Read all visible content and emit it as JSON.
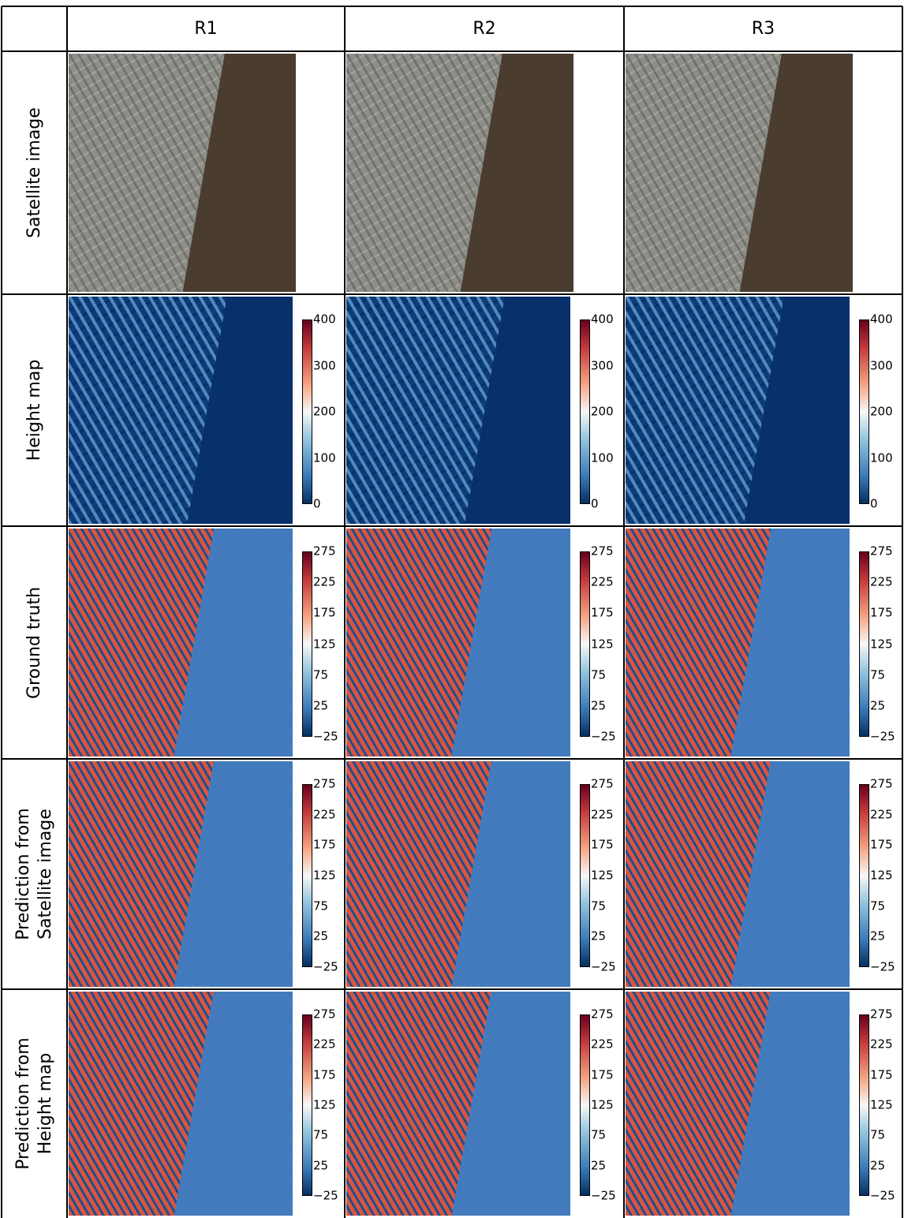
{
  "columns": [
    "R1",
    "R2",
    "R3"
  ],
  "rows": [
    {
      "label": [
        "Satellite image"
      ]
    },
    {
      "label": [
        "Height map"
      ],
      "colorbar": [
        "400",
        "300",
        "200",
        "100",
        "0"
      ]
    },
    {
      "label": [
        "Ground truth"
      ],
      "colorbar": [
        "275",
        "225",
        "175",
        "125",
        "75",
        "25",
        "−25"
      ]
    },
    {
      "label": [
        "Prediction from",
        "Satellite image"
      ],
      "colorbar": [
        "275",
        "225",
        "175",
        "125",
        "75",
        "25",
        "−25"
      ]
    },
    {
      "label": [
        "Prediction from",
        "Height map"
      ],
      "colorbar": [
        "275",
        "225",
        "175",
        "125",
        "75",
        "25",
        "−25"
      ]
    }
  ]
}
